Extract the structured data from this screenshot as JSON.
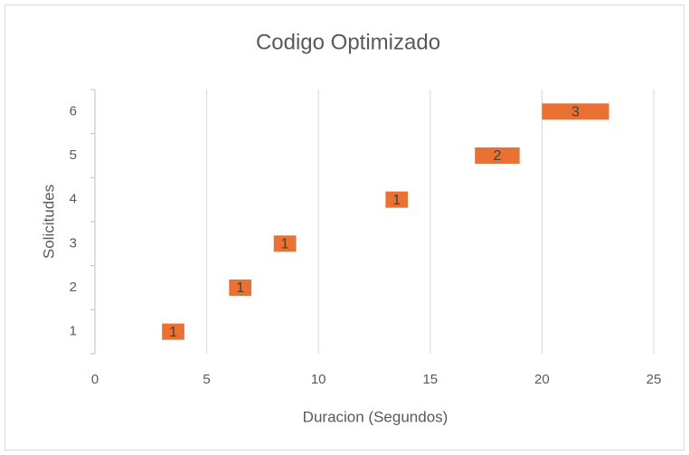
{
  "chart_data": {
    "type": "bar",
    "orientation": "horizontal",
    "title": "Codigo Optimizado",
    "x_label": "Duracion (Segundos)",
    "y_label": "Solicitudes",
    "categories": [
      "1",
      "2",
      "3",
      "4",
      "5",
      "6"
    ],
    "starts": [
      3,
      6,
      8,
      13,
      17,
      20
    ],
    "values": [
      1,
      1,
      1,
      1,
      2,
      3
    ],
    "color": "#e97132",
    "xlim": [
      0,
      25
    ],
    "xticks": [
      0,
      5,
      10,
      15,
      20,
      25
    ],
    "grid": true
  }
}
